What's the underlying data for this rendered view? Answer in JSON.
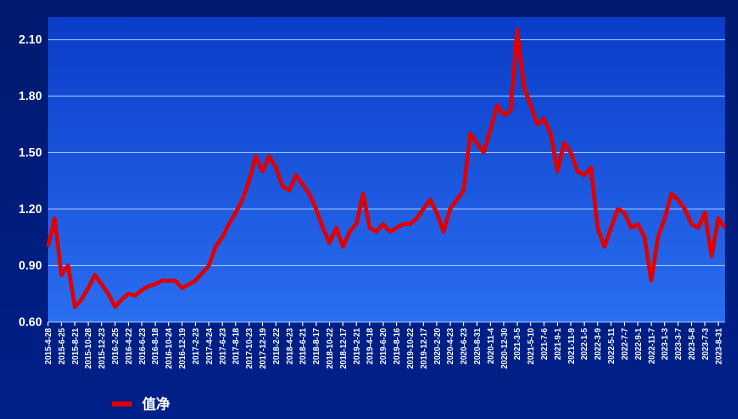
{
  "chart_data": {
    "type": "line",
    "categories": [
      "2015-4-28",
      null,
      "2015-6-25",
      null,
      "2015-8-21",
      null,
      "2015-10-28",
      null,
      "2015-12-23",
      null,
      "2016-2-25",
      null,
      "2016-4-22",
      null,
      "2016-6-23",
      null,
      "2016-8-18",
      null,
      "2016-10-24",
      null,
      "2016-12-19",
      null,
      "2017-2-23",
      null,
      "2017-4-24",
      null,
      "2017-6-23",
      null,
      "2017-8-18",
      null,
      "2017-10-23",
      null,
      "2017-12-19",
      null,
      "2018-2-22",
      null,
      "2018-4-23",
      null,
      "2018-6-21",
      null,
      "2018-8-17",
      null,
      "2018-10-22",
      null,
      "2018-12-17",
      null,
      "2019-2-21",
      null,
      "2019-4-18",
      null,
      "2019-6-20",
      null,
      "2019-8-16",
      null,
      "2019-10-22",
      null,
      "2019-12-17",
      null,
      "2020-2-20",
      null,
      "2020-4-23",
      null,
      "2020-6-23",
      null,
      "2020-8-31",
      null,
      "2020-11-4",
      null,
      "2020-12-30",
      null,
      "2021-3-5",
      null,
      "2021-5-10",
      null,
      "2021-7-6",
      null,
      "2021-9-1",
      null,
      "2021-11-9",
      null,
      "2022-1-5",
      null,
      "2022-3-9",
      null,
      "2022-5-11",
      null,
      "2022-7-7",
      null,
      "2022-9-1",
      null,
      "2022-11-7",
      null,
      "2023-1-3",
      null,
      "2023-3-7",
      null,
      "2023-5-8",
      null,
      "2023-7-3",
      null,
      "2023-8-31",
      null
    ],
    "series": [
      {
        "name": "值净",
        "color": "#e00000",
        "values": [
          1.0,
          1.15,
          0.85,
          0.9,
          0.68,
          0.72,
          0.78,
          0.85,
          0.8,
          0.75,
          0.68,
          0.72,
          0.75,
          0.74,
          0.77,
          0.79,
          0.8,
          0.82,
          0.82,
          0.82,
          0.78,
          0.8,
          0.82,
          0.86,
          0.9,
          1.0,
          1.05,
          1.12,
          1.18,
          1.25,
          1.35,
          1.48,
          1.4,
          1.48,
          1.42,
          1.32,
          1.3,
          1.38,
          1.33,
          1.28,
          1.2,
          1.1,
          1.02,
          1.1,
          1.0,
          1.08,
          1.12,
          1.28,
          1.1,
          1.08,
          1.12,
          1.08,
          1.1,
          1.12,
          1.12,
          1.15,
          1.2,
          1.25,
          1.18,
          1.08,
          1.2,
          1.25,
          1.3,
          1.6,
          1.55,
          1.5,
          1.62,
          1.75,
          1.7,
          1.72,
          2.15,
          1.85,
          1.75,
          1.65,
          1.68,
          1.6,
          1.4,
          1.55,
          1.5,
          1.4,
          1.38,
          1.42,
          1.1,
          1.0,
          1.1,
          1.2,
          1.18,
          1.1,
          1.12,
          1.05,
          0.82,
          1.05,
          1.15,
          1.28,
          1.25,
          1.2,
          1.12,
          1.1,
          1.18,
          0.95,
          1.15,
          1.1
        ]
      }
    ],
    "ylim": [
      0.6,
      2.22
    ],
    "yticks": [
      {
        "value": 0.6,
        "label": "0.60"
      },
      {
        "value": 0.9,
        "label": "0.90"
      },
      {
        "value": 1.2,
        "label": "1.20"
      },
      {
        "value": 1.5,
        "label": "1.50"
      },
      {
        "value": 1.8,
        "label": "1.80"
      },
      {
        "value": 2.1,
        "label": "2.10"
      }
    ],
    "grid": true
  }
}
